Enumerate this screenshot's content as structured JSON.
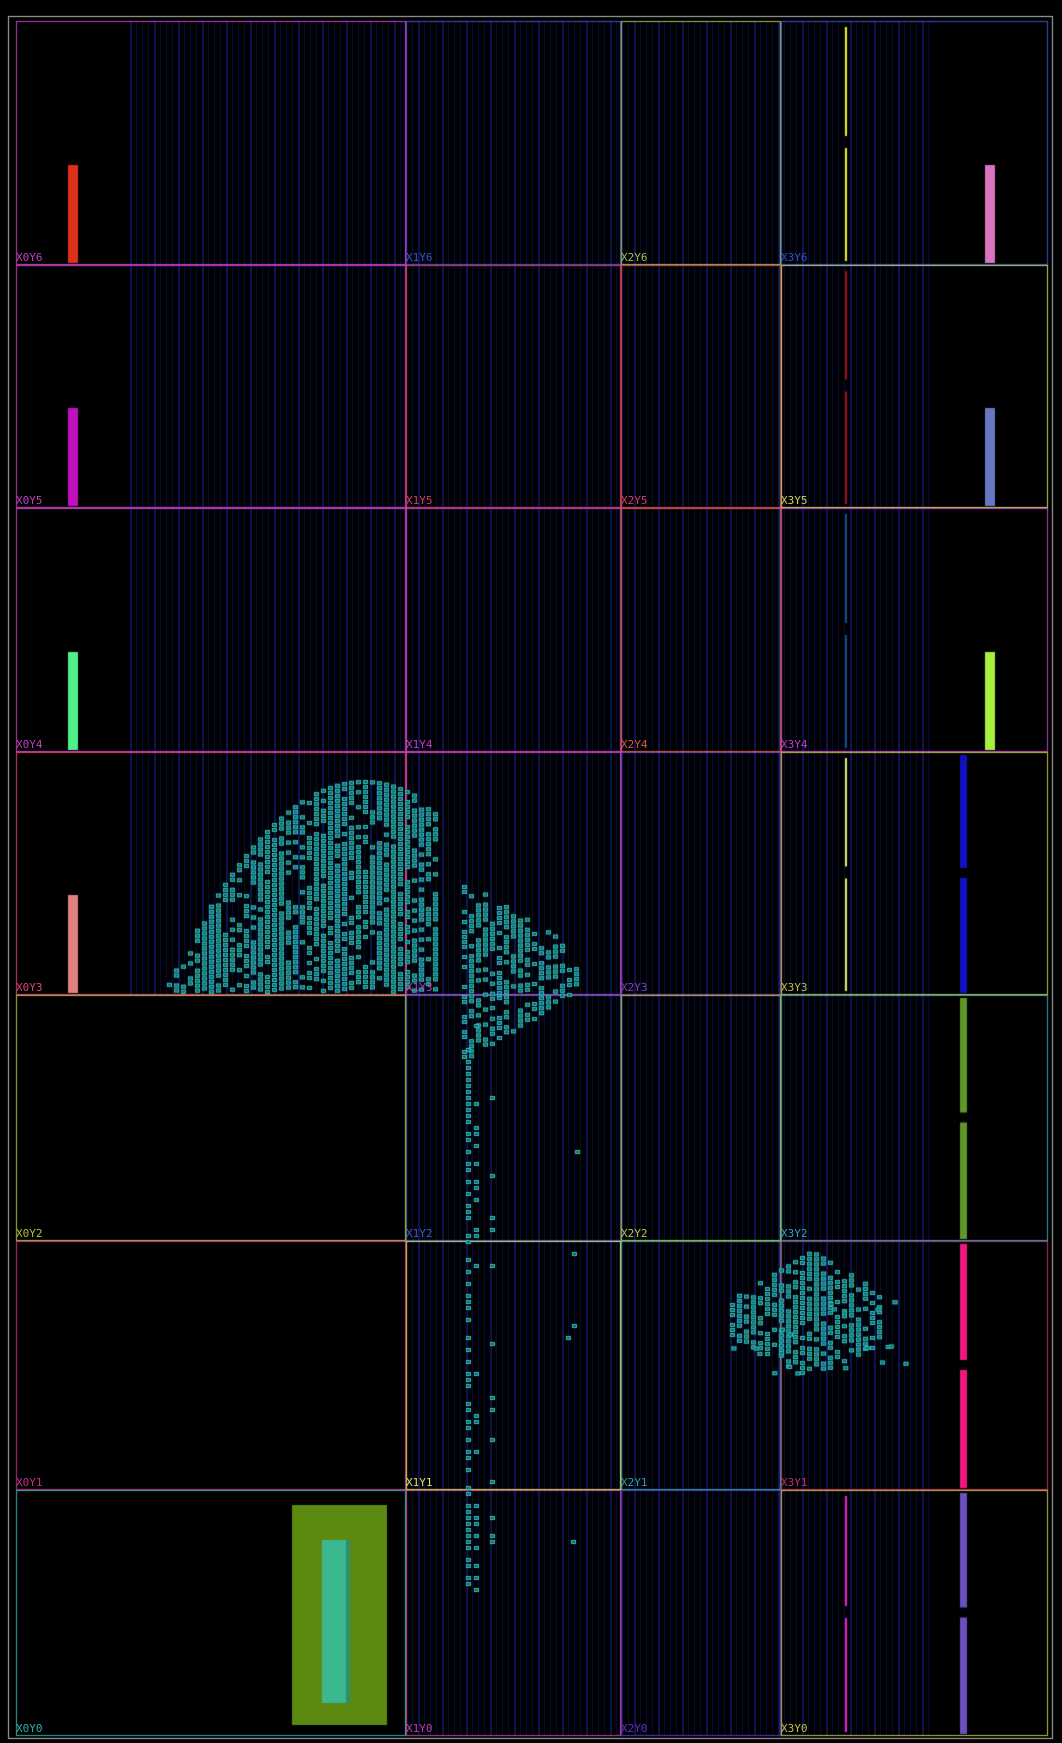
{
  "view": {
    "background": "#000000",
    "outer_border_color": "#b8b8b8",
    "column_tint": "#0b1a7a",
    "cell_color": "#2fc4c0",
    "cell_fill": "#135f66"
  },
  "regions": [
    {
      "name": "X0Y6",
      "color": "#c040c0"
    },
    {
      "name": "X1Y6",
      "color": "#4050d0"
    },
    {
      "name": "X2Y6",
      "color": "#a0c040"
    },
    {
      "name": "X3Y6",
      "color": "#3050d0"
    },
    {
      "name": "X0Y5",
      "color": "#c040c0"
    },
    {
      "name": "X1Y5",
      "color": "#d04060"
    },
    {
      "name": "X2Y5",
      "color": "#d04060"
    },
    {
      "name": "X3Y5",
      "color": "#d0d060"
    },
    {
      "name": "X0Y4",
      "color": "#c040c0"
    },
    {
      "name": "X1Y4",
      "color": "#c040c0"
    },
    {
      "name": "X2Y4",
      "color": "#d06030"
    },
    {
      "name": "X3Y4",
      "color": "#c040c0"
    },
    {
      "name": "X0Y3",
      "color": "#e04080"
    },
    {
      "name": "X1Y3",
      "color": "#c040c0"
    },
    {
      "name": "X2Y3",
      "color": "#8040c0"
    },
    {
      "name": "X3Y3",
      "color": "#c0c040"
    },
    {
      "name": "X0Y2",
      "color": "#b0c040"
    },
    {
      "name": "X1Y2",
      "color": "#4060c0"
    },
    {
      "name": "X2Y2",
      "color": "#c0c040"
    },
    {
      "name": "X3Y2",
      "color": "#30a0c0"
    },
    {
      "name": "X0Y1",
      "color": "#c03080"
    },
    {
      "name": "X1Y1",
      "color": "#e0e060"
    },
    {
      "name": "X2Y1",
      "color": "#30a0a0"
    },
    {
      "name": "X3Y1",
      "color": "#c03060"
    },
    {
      "name": "X0Y0",
      "color": "#30b0b0"
    },
    {
      "name": "X1Y0",
      "color": "#c040a0"
    },
    {
      "name": "X2Y0",
      "color": "#6030c0"
    },
    {
      "name": "X3Y0",
      "color": "#c0c040"
    }
  ],
  "io_bars": [
    {
      "row": 6,
      "side": "left",
      "color": "#e03018"
    },
    {
      "row": 6,
      "side": "right",
      "color": "#d874c0"
    },
    {
      "row": 5,
      "side": "left",
      "color": "#c010c0"
    },
    {
      "row": 5,
      "side": "right",
      "color": "#6878c0"
    },
    {
      "row": 4,
      "side": "left",
      "color": "#50f088"
    },
    {
      "row": 4,
      "side": "right",
      "color": "#a8f040"
    },
    {
      "row": 3,
      "side": "left",
      "color": "#e08080"
    }
  ],
  "right_column_bars": [
    {
      "row": 3,
      "color": "#1010c0"
    },
    {
      "row": 2,
      "color": "#609828"
    },
    {
      "row": 1,
      "color": "#f01880"
    },
    {
      "row": 0,
      "color": "#6c50c0"
    }
  ],
  "clock_lines": [
    {
      "row": 6,
      "color": "#f0f010"
    },
    {
      "row": 5,
      "color": "#a01010"
    },
    {
      "row": 4,
      "color": "#105080"
    },
    {
      "row": 3,
      "color": "#e0f060"
    },
    {
      "row": 0,
      "color": "#f020c0"
    }
  ],
  "hard_block": {
    "outer_color": "#5c8a10",
    "inner_color": "#3cb890"
  }
}
